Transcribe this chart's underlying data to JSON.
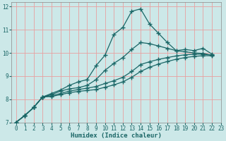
{
  "xlabel": "Humidex (Indice chaleur)",
  "bg_color": "#cce8e8",
  "grid_color": "#e8a0a0",
  "line_color": "#1a6666",
  "xlim": [
    -0.5,
    23
  ],
  "ylim": [
    7,
    12.2
  ],
  "xticks": [
    0,
    1,
    2,
    3,
    4,
    5,
    6,
    7,
    8,
    9,
    10,
    11,
    12,
    13,
    14,
    15,
    16,
    17,
    18,
    19,
    20,
    21,
    22,
    23
  ],
  "yticks": [
    7,
    8,
    9,
    10,
    11,
    12
  ],
  "lines": [
    {
      "x": [
        0,
        1,
        2,
        3,
        4,
        5,
        6,
        7,
        8,
        9,
        10,
        11,
        12,
        13,
        14,
        15,
        16,
        17,
        18,
        19,
        20,
        21,
        22
      ],
      "y": [
        7.0,
        7.3,
        7.65,
        8.1,
        8.25,
        8.4,
        8.6,
        8.75,
        8.85,
        9.45,
        9.9,
        10.8,
        11.1,
        11.8,
        11.9,
        11.25,
        10.85,
        10.45,
        10.1,
        10.15,
        10.1,
        10.2,
        9.95
      ]
    },
    {
      "x": [
        0,
        1,
        2,
        3,
        4,
        5,
        6,
        7,
        8,
        9,
        10,
        11,
        12,
        13,
        14,
        15,
        16,
        17,
        18,
        19,
        20,
        21,
        22
      ],
      "y": [
        7.0,
        7.3,
        7.65,
        8.1,
        8.2,
        8.35,
        8.45,
        8.5,
        8.6,
        8.85,
        9.25,
        9.55,
        9.8,
        10.15,
        10.45,
        10.4,
        10.3,
        10.2,
        10.1,
        10.05,
        10.0,
        9.98,
        9.9
      ]
    },
    {
      "x": [
        0,
        1,
        2,
        3,
        4,
        5,
        6,
        7,
        8,
        9,
        10,
        11,
        12,
        13,
        14,
        15,
        16,
        17,
        18,
        19,
        20,
        21,
        22
      ],
      "y": [
        7.0,
        7.3,
        7.65,
        8.1,
        8.15,
        8.25,
        8.35,
        8.42,
        8.48,
        8.55,
        8.68,
        8.8,
        8.95,
        9.2,
        9.5,
        9.62,
        9.72,
        9.8,
        9.87,
        9.92,
        9.94,
        9.95,
        9.9
      ]
    },
    {
      "x": [
        0,
        1,
        2,
        3,
        4,
        5,
        6,
        7,
        8,
        9,
        10,
        11,
        12,
        13,
        14,
        15,
        16,
        17,
        18,
        19,
        20,
        21,
        22
      ],
      "y": [
        7.0,
        7.3,
        7.65,
        8.1,
        8.12,
        8.2,
        8.28,
        8.34,
        8.38,
        8.42,
        8.52,
        8.62,
        8.75,
        8.95,
        9.2,
        9.38,
        9.52,
        9.63,
        9.73,
        9.8,
        9.85,
        9.88,
        9.88
      ]
    }
  ]
}
